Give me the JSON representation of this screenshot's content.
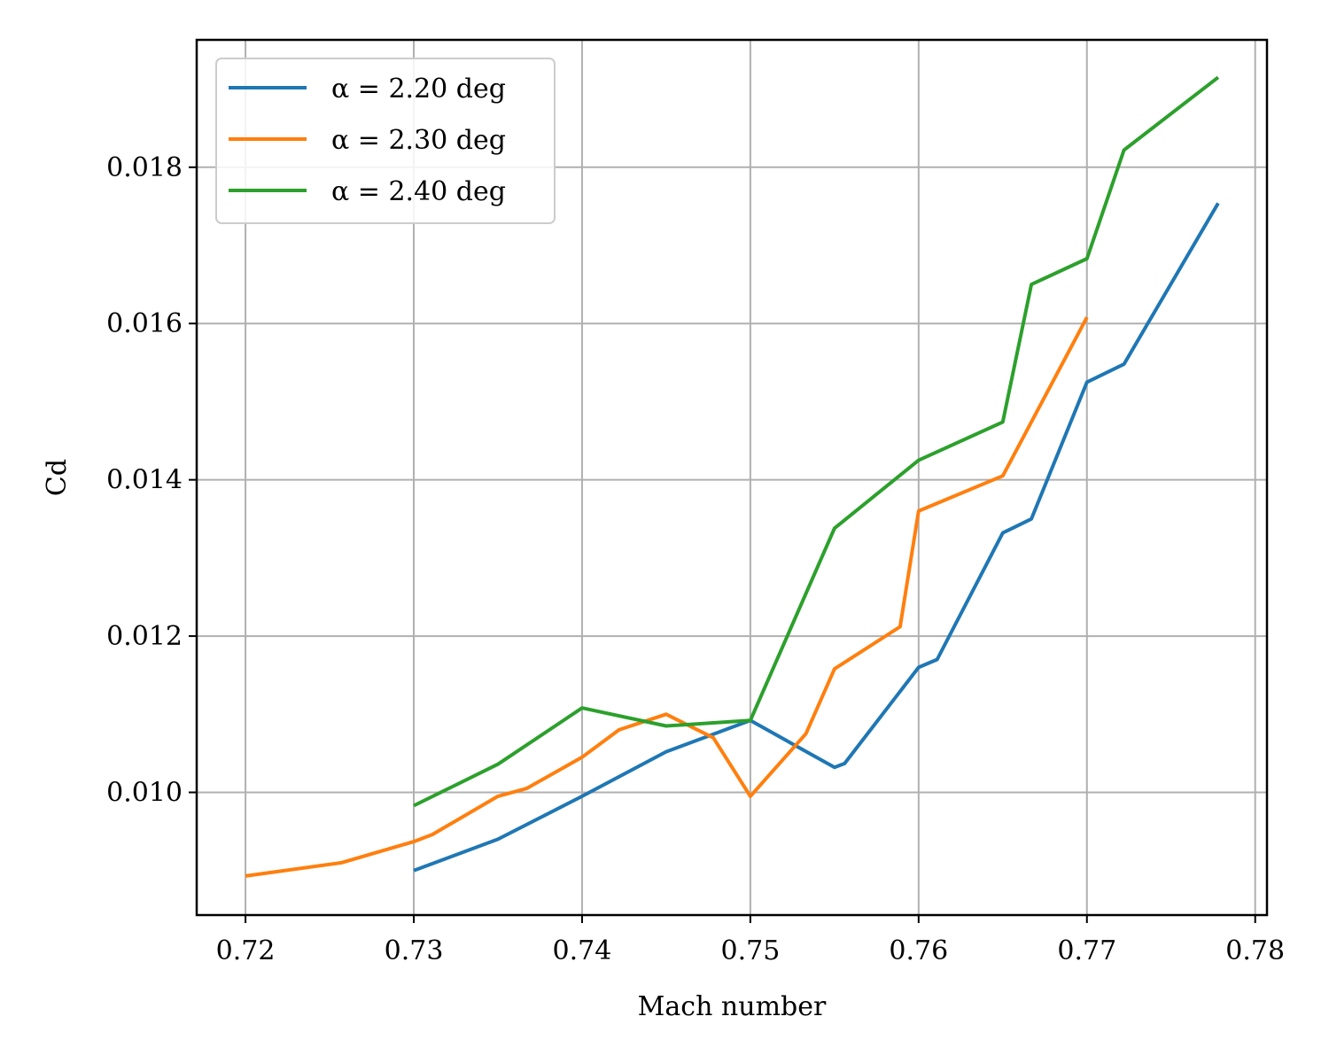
{
  "chart_data": {
    "type": "line",
    "title": "",
    "xlabel": "Mach number",
    "ylabel": "Cd",
    "xlim": [
      0.7171,
      0.7807
    ],
    "ylim": [
      0.00843,
      0.01963
    ],
    "xticks": [
      0.72,
      0.73,
      0.74,
      0.75,
      0.76,
      0.77,
      0.78
    ],
    "xtick_labels": [
      "0.72",
      "0.73",
      "0.74",
      "0.75",
      "0.76",
      "0.77",
      "0.78"
    ],
    "yticks": [
      0.01,
      0.012,
      0.014,
      0.016,
      0.018
    ],
    "ytick_labels": [
      "0.010",
      "0.012",
      "0.014",
      "0.016",
      "0.018"
    ],
    "grid": true,
    "legend_position": "top-left",
    "series": [
      {
        "name": "α = 2.20 deg",
        "color": "#1f77b4",
        "x": [
          0.73,
          0.735,
          0.74,
          0.745,
          0.75,
          0.755,
          0.7556,
          0.76,
          0.7611,
          0.765,
          0.7667,
          0.77,
          0.7722,
          0.7778
        ],
        "y": [
          0.009,
          0.0094,
          0.00995,
          0.01052,
          0.01092,
          0.01032,
          0.01037,
          0.0116,
          0.0117,
          0.01332,
          0.0135,
          0.01525,
          0.01548,
          0.01754
        ]
      },
      {
        "name": "α = 2.30 deg",
        "color": "#ff7f0e",
        "x": [
          0.72,
          0.7257,
          0.73,
          0.7311,
          0.735,
          0.7367,
          0.74,
          0.7422,
          0.745,
          0.7478,
          0.75,
          0.7533,
          0.755,
          0.7589,
          0.76,
          0.765,
          0.77
        ],
        "y": [
          0.00893,
          0.0091,
          0.00937,
          0.00946,
          0.00995,
          0.01005,
          0.01045,
          0.0108,
          0.011,
          0.0107,
          0.00995,
          0.01075,
          0.01158,
          0.01212,
          0.0136,
          0.01405,
          0.01608
        ]
      },
      {
        "name": "α = 2.40 deg",
        "color": "#2ca02c",
        "x": [
          0.73,
          0.735,
          0.74,
          0.745,
          0.75,
          0.755,
          0.76,
          0.765,
          0.7667,
          0.77,
          0.7722,
          0.7778
        ],
        "y": [
          0.00983,
          0.01036,
          0.01108,
          0.01085,
          0.01092,
          0.01338,
          0.01425,
          0.01474,
          0.0165,
          0.01683,
          0.01822,
          0.01915
        ]
      }
    ]
  }
}
